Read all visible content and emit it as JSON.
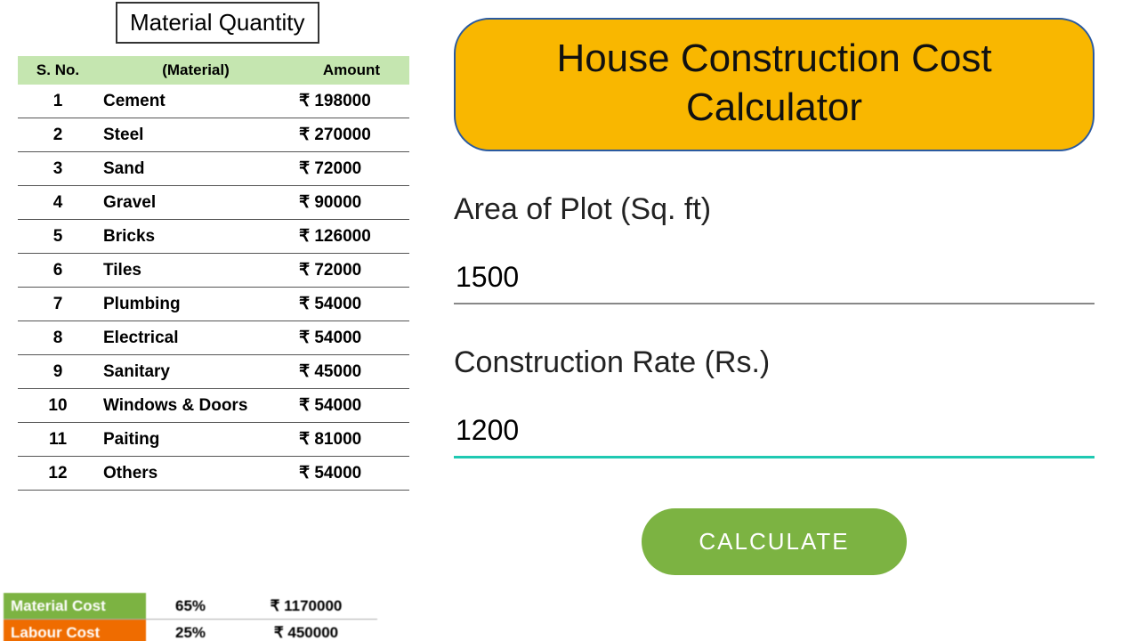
{
  "left": {
    "title": "Material Quantity",
    "columns": {
      "c1": "S. No.",
      "c2": "(Material)",
      "c3": "Amount"
    },
    "header_bg": "#c5e6b0",
    "row_border_color": "#555555",
    "currency_symbol": "₹",
    "rows": [
      {
        "n": "1",
        "material": "Cement",
        "amount": "₹ 198000"
      },
      {
        "n": "2",
        "material": "Steel",
        "amount": "₹ 270000"
      },
      {
        "n": "3",
        "material": "Sand",
        "amount": "₹ 72000"
      },
      {
        "n": "4",
        "material": "Gravel",
        "amount": "₹ 90000"
      },
      {
        "n": "5",
        "material": "Bricks",
        "amount": "₹ 126000"
      },
      {
        "n": "6",
        "material": "Tiles",
        "amount": "₹ 72000"
      },
      {
        "n": "7",
        "material": "Plumbing",
        "amount": "₹ 54000"
      },
      {
        "n": "8",
        "material": "Electrical",
        "amount": "₹ 54000"
      },
      {
        "n": "9",
        "material": "Sanitary",
        "amount": "₹ 45000"
      },
      {
        "n": "10",
        "material": "Windows & Doors",
        "amount": "₹ 54000"
      },
      {
        "n": "11",
        "material": "Paiting",
        "amount": "₹ 81000"
      },
      {
        "n": "12",
        "material": "Others",
        "amount": "₹ 54000"
      }
    ],
    "summary": {
      "material": {
        "label": "Material Cost",
        "pct": "65%",
        "amount": "₹ 1170000",
        "bg": "#7cb342"
      },
      "labour": {
        "label": "Labour Cost",
        "pct": "25%",
        "amount": "₹ 450000",
        "bg": "#ef6c00"
      }
    }
  },
  "right": {
    "banner": "House Construction Cost Calculator",
    "banner_bg": "#f9b700",
    "banner_border": "#2a5aa0",
    "area_label": "Area of Plot (Sq. ft)",
    "area_value": "1500",
    "rate_label": "Construction Rate (Rs.)",
    "rate_value": "1200",
    "active_underline": "#1fc9b2",
    "calc_label": "CALCULATE",
    "calc_bg": "#7cb342"
  }
}
